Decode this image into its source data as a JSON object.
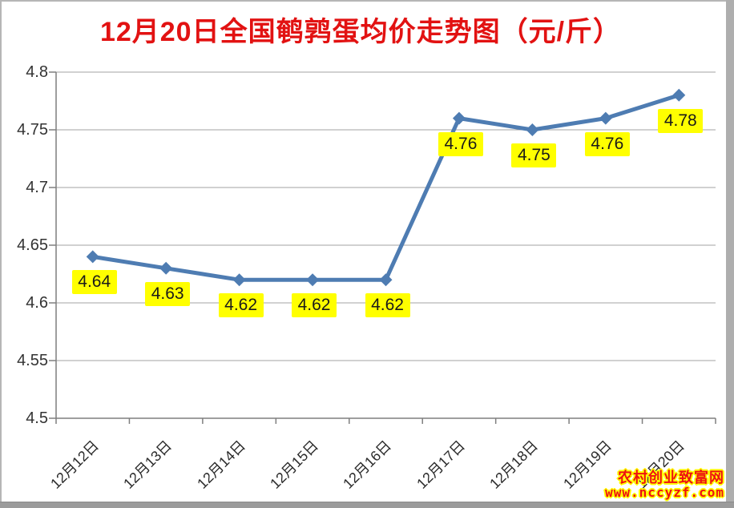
{
  "chart_data": {
    "type": "line",
    "title": "12月20日全国鹌鹑蛋均价走势图（元/斤）",
    "categories": [
      "12月12日",
      "12月13日",
      "12月14日",
      "12月15日",
      "12月16日",
      "12月17日",
      "12月18日",
      "12月19日",
      "12月20日"
    ],
    "values": [
      4.64,
      4.63,
      4.62,
      4.62,
      4.62,
      4.76,
      4.75,
      4.76,
      4.78
    ],
    "data_labels": [
      "4.64",
      "4.63",
      "4.62",
      "4.62",
      "4.62",
      "4.76",
      "4.75",
      "4.76",
      "4.78"
    ],
    "xlabel": "",
    "ylabel": "",
    "ylim": [
      4.5,
      4.8
    ],
    "ytick_step": 0.05,
    "ytick_labels": [
      "4.8",
      "4.75",
      "4.7",
      "4.65",
      "4.6",
      "4.55",
      "4.5"
    ],
    "grid": true,
    "legend_position": "none",
    "marker": "diamond",
    "colors": {
      "line": "#4e7cb2",
      "marker": "#4e7cb2",
      "title": "#e21212",
      "label_bg": "#ffff00",
      "label_text": "#1a1a1a",
      "gridline": "#a3a3a3",
      "axis": "#7f7f7f",
      "tick_text": "#333333"
    }
  },
  "watermark": {
    "site_name": "农村创业致富网",
    "site_url": "www.nccyzf.com",
    "text_color": "#ee1111",
    "outline_color": "#ffff00"
  }
}
